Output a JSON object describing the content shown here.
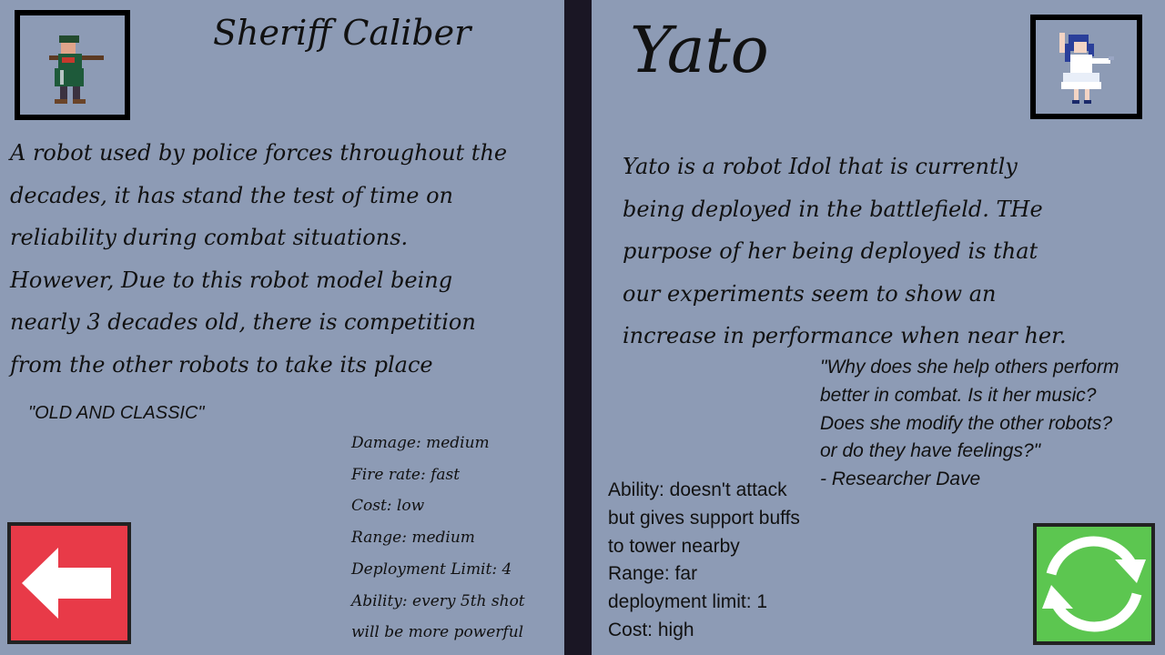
{
  "left": {
    "name": "Sheriff Caliber",
    "description": [
      "A robot used by police forces throughout the",
      "decades, it has stand the test of time on",
      "reliability during combat situations.",
      "However, Due to this robot model being",
      "nearly 3 decades old, there is competition",
      "from the other robots to take its place"
    ],
    "quote": "\"OLD AND CLASSIC\"",
    "stats": [
      "Damage: medium",
      "Fire rate: fast",
      "Cost: low",
      "Range: medium",
      "Deployment Limit: 4",
      "Ability: every 5th shot",
      "will be more powerful"
    ]
  },
  "right": {
    "name": "Yato",
    "description": [
      "Yato is a robot Idol that is currently",
      "being deployed in the battlefield. THe",
      "purpose of her being deployed is that",
      "our experiments seem to show an",
      "increase in performance when near her."
    ],
    "quote": [
      "\"Why does she help others perform",
      "better in combat. Is it her music?",
      "Does she modify the other robots?",
      "or do they have feelings?\"",
      "- Researcher Dave"
    ],
    "stats": [
      "Ability: doesn't attack",
      "but gives support buffs",
      "to tower nearby",
      "Range: far",
      "deployment limit: 1",
      "Cost: high"
    ]
  },
  "colors": {
    "background": "#8d9bb5",
    "divider": "#1a1624",
    "back_button": "#e83a48",
    "swap_button": "#5cc650"
  },
  "icons": {
    "back": "left-arrow-icon",
    "swap": "refresh-cycle-icon"
  }
}
